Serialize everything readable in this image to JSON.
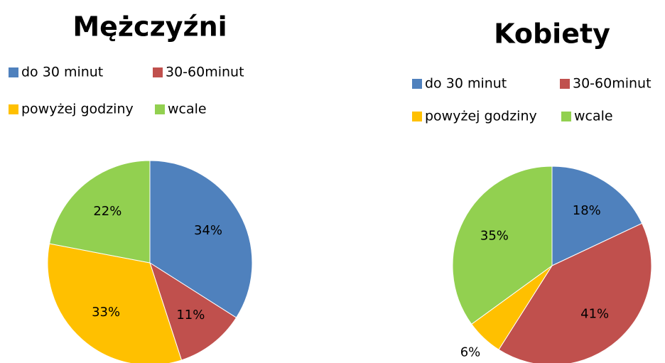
{
  "chart_data": [
    {
      "type": "pie",
      "title": "Mężczyźni",
      "categories": [
        "do 30 minut",
        "30-60minut",
        "powyżej godziny",
        "wcale"
      ],
      "values": [
        34,
        11,
        33,
        22
      ],
      "value_labels": [
        "34%",
        "11%",
        "33%",
        "22%"
      ],
      "colors": [
        "#4f81bd",
        "#c0504d",
        "#ffc000",
        "#92d050"
      ]
    },
    {
      "type": "pie",
      "title": "Kobiety",
      "categories": [
        "do 30 minut",
        "30-60minut",
        "powyżej godziny",
        "wcale"
      ],
      "values": [
        18,
        41,
        6,
        35
      ],
      "value_labels": [
        "18%",
        "41%",
        "6%",
        "35%"
      ],
      "colors": [
        "#4f81bd",
        "#c0504d",
        "#ffc000",
        "#92d050"
      ]
    }
  ]
}
